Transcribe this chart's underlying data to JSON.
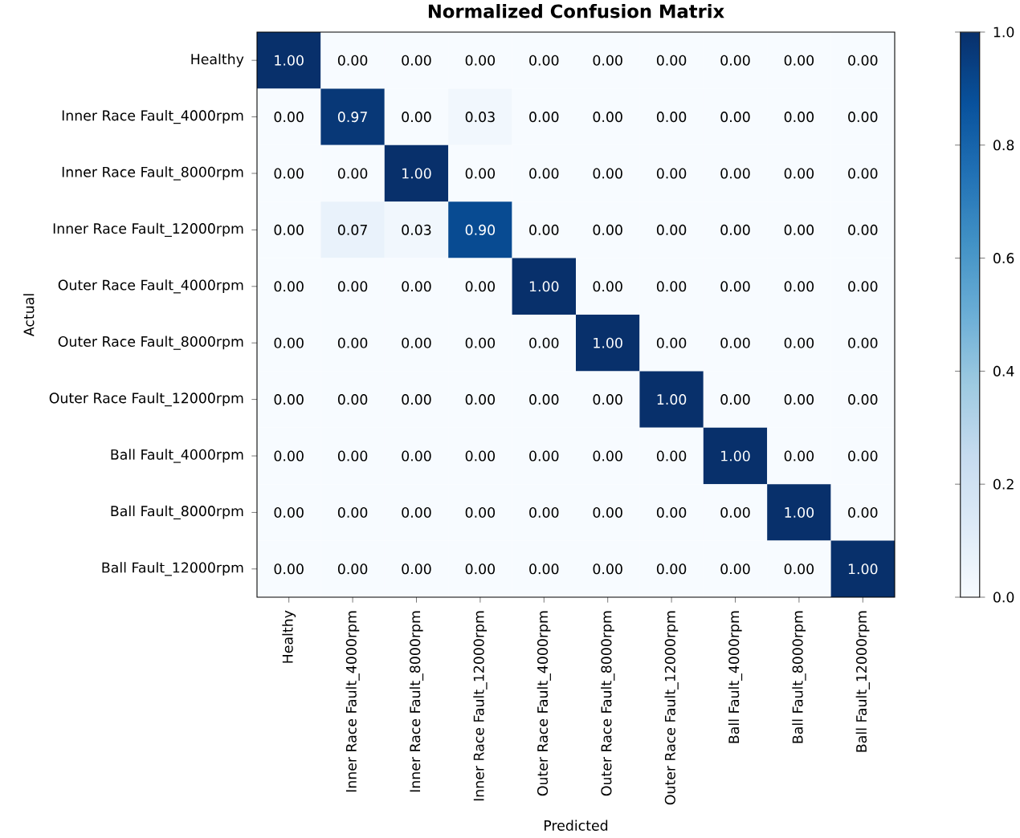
{
  "chart_data": {
    "type": "heatmap",
    "title": "Normalized Confusion Matrix",
    "xlabel": "Predicted",
    "ylabel": "Actual",
    "categories": [
      "Healthy",
      "Inner Race Fault_4000rpm",
      "Inner Race Fault_8000rpm",
      "Inner Race Fault_12000rpm",
      "Outer Race Fault_4000rpm",
      "Outer Race Fault_8000rpm",
      "Outer Race Fault_12000rpm",
      "Ball Fault_4000rpm",
      "Ball Fault_8000rpm",
      "Ball Fault_12000rpm"
    ],
    "y_categories": [
      "Healthy",
      "Inner Race Fault_4000rpm",
      "Inner Race Fault_8000rpm",
      "Inner Race Fault_12000rpm",
      "Outer Race Fault_4000rpm",
      "Outer Race Fault_8000rpm",
      "Outer Race Fault_12000rpm",
      "Ball Fault_4000rpm",
      "Ball Fault_8000rpm",
      "Ball Fault_12000rpm"
    ],
    "cells": [
      [
        1.0,
        0,
        0,
        0,
        0,
        0,
        0,
        0,
        0,
        0
      ],
      [
        0,
        0.97,
        0,
        0.03,
        0,
        0,
        0,
        0,
        0,
        0
      ],
      [
        0,
        0,
        1.0,
        0,
        0,
        0,
        0,
        0,
        0,
        0
      ],
      [
        0,
        0.07,
        0.03,
        0.9,
        0,
        0,
        0,
        0,
        0,
        0
      ],
      [
        0,
        0,
        0,
        0,
        1.0,
        0,
        0,
        0,
        0,
        0
      ],
      [
        0,
        0,
        0,
        0,
        0,
        1.0,
        0,
        0,
        0,
        0
      ],
      [
        0,
        0,
        0,
        0,
        0,
        0,
        1.0,
        0,
        0,
        0
      ],
      [
        0,
        0,
        0,
        0,
        0,
        0,
        0,
        1.0,
        0,
        0
      ],
      [
        0,
        0,
        0,
        0,
        0,
        0,
        0,
        0,
        1.0,
        0
      ],
      [
        0,
        0,
        0,
        0,
        0,
        0,
        0,
        0,
        0,
        1.0
      ]
    ],
    "cell_labels": [
      [
        "1.00",
        "0.00",
        "0.00",
        "0.00",
        "0.00",
        "0.00",
        "0.00",
        "0.00",
        "0.00",
        "0.00"
      ],
      [
        "0.00",
        "0.97",
        "0.00",
        "0.03",
        "0.00",
        "0.00",
        "0.00",
        "0.00",
        "0.00",
        "0.00"
      ],
      [
        "0.00",
        "0.00",
        "1.00",
        "0.00",
        "0.00",
        "0.00",
        "0.00",
        "0.00",
        "0.00",
        "0.00"
      ],
      [
        "0.00",
        "0.07",
        "0.03",
        "0.90",
        "0.00",
        "0.00",
        "0.00",
        "0.00",
        "0.00",
        "0.00"
      ],
      [
        "0.00",
        "0.00",
        "0.00",
        "0.00",
        "1.00",
        "0.00",
        "0.00",
        "0.00",
        "0.00",
        "0.00"
      ],
      [
        "0.00",
        "0.00",
        "0.00",
        "0.00",
        "0.00",
        "1.00",
        "0.00",
        "0.00",
        "0.00",
        "0.00"
      ],
      [
        "0.00",
        "0.00",
        "0.00",
        "0.00",
        "0.00",
        "0.00",
        "1.00",
        "0.00",
        "0.00",
        "0.00"
      ],
      [
        "0.00",
        "0.00",
        "0.00",
        "0.00",
        "0.00",
        "0.00",
        "0.00",
        "1.00",
        "0.00",
        "0.00"
      ],
      [
        "0.00",
        "0.00",
        "0.00",
        "0.00",
        "0.00",
        "0.00",
        "0.00",
        "0.00",
        "1.00",
        "0.00"
      ],
      [
        "0.00",
        "0.00",
        "0.00",
        "0.00",
        "0.00",
        "0.00",
        "0.00",
        "0.00",
        "0.00",
        "1.00"
      ]
    ],
    "clim": [
      0,
      1
    ],
    "cticks": [
      {
        "value": 0,
        "label": "0.0"
      },
      {
        "value": 0.2,
        "label": "0.2"
      },
      {
        "value": 0.4,
        "label": "0.4"
      },
      {
        "value": 0.6,
        "label": "0.6"
      },
      {
        "value": 0.8,
        "label": "0.8"
      },
      {
        "value": 1,
        "label": "1.0"
      }
    ]
  }
}
